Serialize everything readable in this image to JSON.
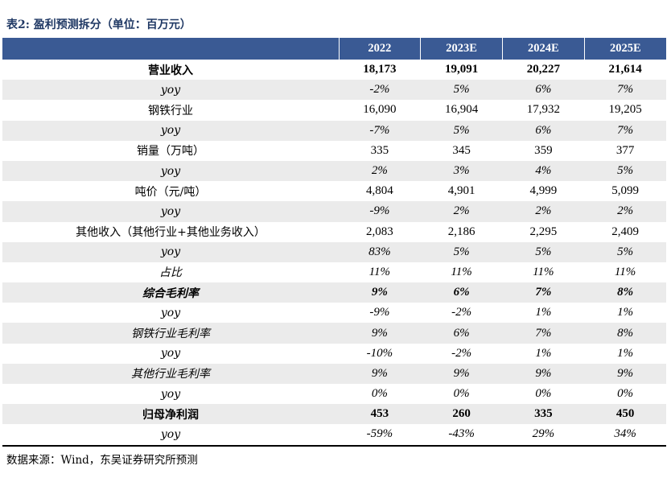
{
  "title": "表2:  盈利预测拆分（单位：百万元）",
  "columns": [
    "",
    "2022",
    "2023E",
    "2024E",
    "2025E"
  ],
  "rows": [
    {
      "label": "营业收入",
      "values": [
        "18,173",
        "19,091",
        "20,227",
        "21,614"
      ],
      "style": "bold"
    },
    {
      "label": "yoy",
      "values": [
        "-2%",
        "5%",
        "6%",
        "7%"
      ],
      "style": "italic"
    },
    {
      "label": "钢铁行业",
      "values": [
        "16,090",
        "16,904",
        "17,932",
        "19,205"
      ],
      "style": "normal"
    },
    {
      "label": "yoy",
      "values": [
        "-7%",
        "5%",
        "6%",
        "7%"
      ],
      "style": "italic"
    },
    {
      "label": "销量（万吨）",
      "values": [
        "335",
        "345",
        "359",
        "377"
      ],
      "style": "normal"
    },
    {
      "label": "yoy",
      "values": [
        "2%",
        "3%",
        "4%",
        "5%"
      ],
      "style": "italic"
    },
    {
      "label": "吨价（元/吨）",
      "values": [
        "4,804",
        "4,901",
        "4,999",
        "5,099"
      ],
      "style": "normal"
    },
    {
      "label": "yoy",
      "values": [
        "-9%",
        "2%",
        "2%",
        "2%"
      ],
      "style": "italic"
    },
    {
      "label": "其他收入（其他行业+其他业务收入）",
      "values": [
        "2,083",
        "2,186",
        "2,295",
        "2,409"
      ],
      "style": "normal"
    },
    {
      "label": "yoy",
      "values": [
        "83%",
        "5%",
        "5%",
        "5%"
      ],
      "style": "italic"
    },
    {
      "label": "占比",
      "values": [
        "11%",
        "11%",
        "11%",
        "11%"
      ],
      "style": "italic"
    },
    {
      "label": "综合毛利率",
      "values": [
        "9%",
        "6%",
        "7%",
        "8%"
      ],
      "style": "bold italic"
    },
    {
      "label": "yoy",
      "values": [
        "-9%",
        "-2%",
        "1%",
        "1%"
      ],
      "style": "italic"
    },
    {
      "label": "钢铁行业毛利率",
      "values": [
        "9%",
        "6%",
        "7%",
        "8%"
      ],
      "style": "italic"
    },
    {
      "label": "yoy",
      "values": [
        "-10%",
        "-2%",
        "1%",
        "1%"
      ],
      "style": "italic"
    },
    {
      "label": "其他行业毛利率",
      "values": [
        "9%",
        "9%",
        "9%",
        "9%"
      ],
      "style": "italic"
    },
    {
      "label": "yoy",
      "values": [
        "0%",
        "0%",
        "0%",
        "0%"
      ],
      "style": "italic"
    },
    {
      "label": "归母净利润",
      "values": [
        "453",
        "260",
        "335",
        "450"
      ],
      "style": "bold"
    },
    {
      "label": "yoy",
      "values": [
        "-59%",
        "-43%",
        "29%",
        "34%"
      ],
      "style": "italic"
    }
  ],
  "source": "数据来源：Wind，东吴证券研究所预测",
  "colors": {
    "header_bg": "#3a5a94",
    "title": "#1f3864",
    "stripe": "#ebebeb"
  }
}
